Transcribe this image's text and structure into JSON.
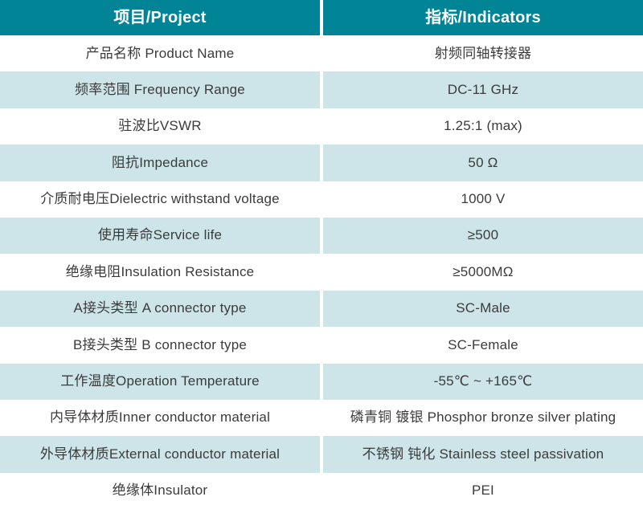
{
  "table": {
    "header": {
      "project": "项目/Project",
      "indicators": "指标/Indicators"
    },
    "rows": [
      {
        "project": "产品名称 Product Name",
        "indicator": "射频同轴转接器"
      },
      {
        "project": "频率范围 Frequency Range",
        "indicator": "DC-11 GHz"
      },
      {
        "project": "驻波比VSWR",
        "indicator": "1.25:1 (max)"
      },
      {
        "project": "阻抗Impedance",
        "indicator": "50 Ω"
      },
      {
        "project": "介质耐电压Dielectric withstand voltage",
        "indicator": "1000 V"
      },
      {
        "project": "使用寿命Service life",
        "indicator": "≥500"
      },
      {
        "project": "绝缘电阻Insulation Resistance",
        "indicator": "≥5000MΩ"
      },
      {
        "project": "A接头类型 A connector type",
        "indicator": "SC-Male"
      },
      {
        "project": "B接头类型 B connector type",
        "indicator": "SC-Female"
      },
      {
        "project": "工作温度Operation Temperature",
        "indicator": "-55℃ ~ +165℃"
      },
      {
        "project": "内导体材质Inner conductor material",
        "indicator": "磷青铜 镀银 Phosphor bronze silver plating"
      },
      {
        "project": "外导体材质External conductor material",
        "indicator": "不锈钢 钝化 Stainless steel passivation"
      },
      {
        "project": "绝缘体Insulator",
        "indicator": "PEI"
      }
    ]
  },
  "colors": {
    "header_bg": "#008496",
    "header_text": "#ffffff",
    "alt_row_bg": "#cde5e9",
    "text": "#3b3b3b"
  }
}
